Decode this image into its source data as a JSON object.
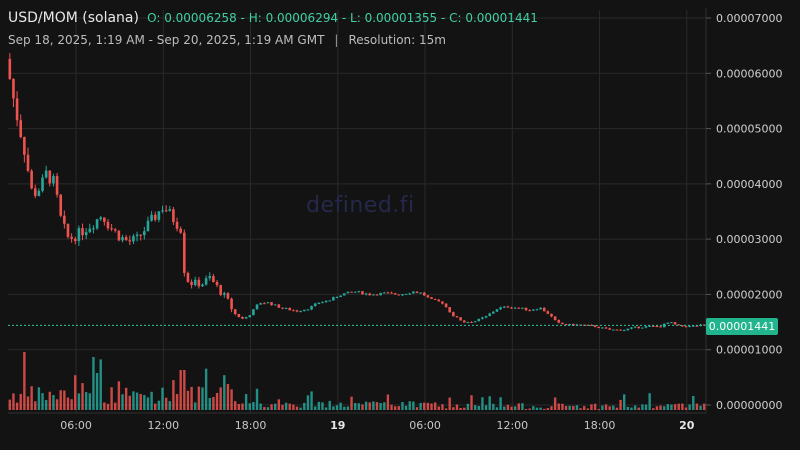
{
  "header": {
    "pair": "USD/MOM (solana)",
    "ohlc": "O: 0.00006258 - H: 0.00006294 - L: 0.00001355 - C: 0.00001441",
    "range": "Sep 18, 2025, 1:19 AM - Sep 20, 2025, 1:19 AM GMT",
    "separator": "|",
    "resolution": "Resolution: 15m"
  },
  "watermark": "defined.fi",
  "last_price_label": "0.00001441",
  "colors": {
    "up": "#26a69a",
    "down": "#ef5350",
    "last_line": "#2ec4a0",
    "grid": "#2a2a2a"
  },
  "chart_data": {
    "type": "candlestick",
    "y_ticks": [
      "0.00007000",
      "0.00006000",
      "0.00005000",
      "0.00004000",
      "0.00003000",
      "0.00002000",
      "0.00001000",
      "0.00000000"
    ],
    "y_tick_values": [
      7e-05,
      6e-05,
      5e-05,
      4e-05,
      3e-05,
      2e-05,
      1e-05,
      0
    ],
    "ylim": [
      0,
      7e-05
    ],
    "x_ticks": [
      {
        "label": "06:00",
        "t": 4.68,
        "bold": false
      },
      {
        "label": "12:00",
        "t": 10.68,
        "bold": false
      },
      {
        "label": "18:00",
        "t": 16.68,
        "bold": false
      },
      {
        "label": "19",
        "t": 22.68,
        "bold": true
      },
      {
        "label": "06:00",
        "t": 28.68,
        "bold": false
      },
      {
        "label": "12:00",
        "t": 34.68,
        "bold": false
      },
      {
        "label": "18:00",
        "t": 40.68,
        "bold": false
      },
      {
        "label": "20",
        "t": 46.68,
        "bold": true
      }
    ],
    "x_unit": "hours since Sep 18, 2025 1:19 AM",
    "xlim": [
      0,
      48
    ],
    "last_price": 1.441e-05,
    "price_path": [
      [
        0,
        6.26e-05
      ],
      [
        0.6,
        5.4e-05
      ],
      [
        1.2,
        4.7e-05
      ],
      [
        1.8,
        3.8e-05
      ],
      [
        2.4,
        3.95e-05
      ],
      [
        2.8,
        4.2e-05
      ],
      [
        3.3,
        4e-05
      ],
      [
        3.8,
        3.3e-05
      ],
      [
        4.3,
        3e-05
      ],
      [
        5,
        3.1e-05
      ],
      [
        6,
        3.3e-05
      ],
      [
        6.6,
        3.45e-05
      ],
      [
        7.2,
        3.2e-05
      ],
      [
        7.8,
        3.05e-05
      ],
      [
        8.4,
        2.95e-05
      ],
      [
        9,
        3e-05
      ],
      [
        9.6,
        3.2e-05
      ],
      [
        10.2,
        3.4e-05
      ],
      [
        10.8,
        3.6e-05
      ],
      [
        11.4,
        3.4e-05
      ],
      [
        12,
        3.2e-05
      ],
      [
        12.3,
        2.3e-05
      ],
      [
        12.8,
        2.2e-05
      ],
      [
        13.5,
        2.2e-05
      ],
      [
        14,
        2.3e-05
      ],
      [
        14.6,
        2.1e-05
      ],
      [
        15.2,
        1.9e-05
      ],
      [
        15.7,
        1.65e-05
      ],
      [
        16.3,
        1.55e-05
      ],
      [
        16.8,
        1.65e-05
      ],
      [
        17.4,
        1.85e-05
      ],
      [
        18,
        1.85e-05
      ],
      [
        19,
        1.75e-05
      ],
      [
        20,
        1.7e-05
      ],
      [
        20.8,
        1.75e-05
      ],
      [
        21.5,
        1.85e-05
      ],
      [
        22.3,
        1.9e-05
      ],
      [
        23,
        2e-05
      ],
      [
        24,
        2.05e-05
      ],
      [
        25,
        2e-05
      ],
      [
        26,
        2.02e-05
      ],
      [
        27,
        2e-05
      ],
      [
        28,
        2.05e-05
      ],
      [
        28.6,
        2.02e-05
      ],
      [
        29.2,
        1.9e-05
      ],
      [
        30,
        1.85e-05
      ],
      [
        30.8,
        1.6e-05
      ],
      [
        31.5,
        1.5e-05
      ],
      [
        32.3,
        1.52e-05
      ],
      [
        33,
        1.6e-05
      ],
      [
        33.8,
        1.75e-05
      ],
      [
        34.6,
        1.78e-05
      ],
      [
        35.3,
        1.75e-05
      ],
      [
        36,
        1.72e-05
      ],
      [
        36.7,
        1.76e-05
      ],
      [
        37.3,
        1.65e-05
      ],
      [
        37.9,
        1.48e-05
      ],
      [
        38.5,
        1.45e-05
      ],
      [
        39.5,
        1.45e-05
      ],
      [
        40.5,
        1.42e-05
      ],
      [
        41.5,
        1.36e-05
      ],
      [
        42.5,
        1.36e-05
      ],
      [
        43.2,
        1.4e-05
      ],
      [
        44,
        1.42e-05
      ],
      [
        45,
        1.42e-05
      ],
      [
        45.6,
        1.5e-05
      ],
      [
        46.2,
        1.43e-05
      ],
      [
        47,
        1.42e-05
      ],
      [
        47.8,
        1.44e-05
      ]
    ],
    "volume_max_ratio": 1.0
  }
}
